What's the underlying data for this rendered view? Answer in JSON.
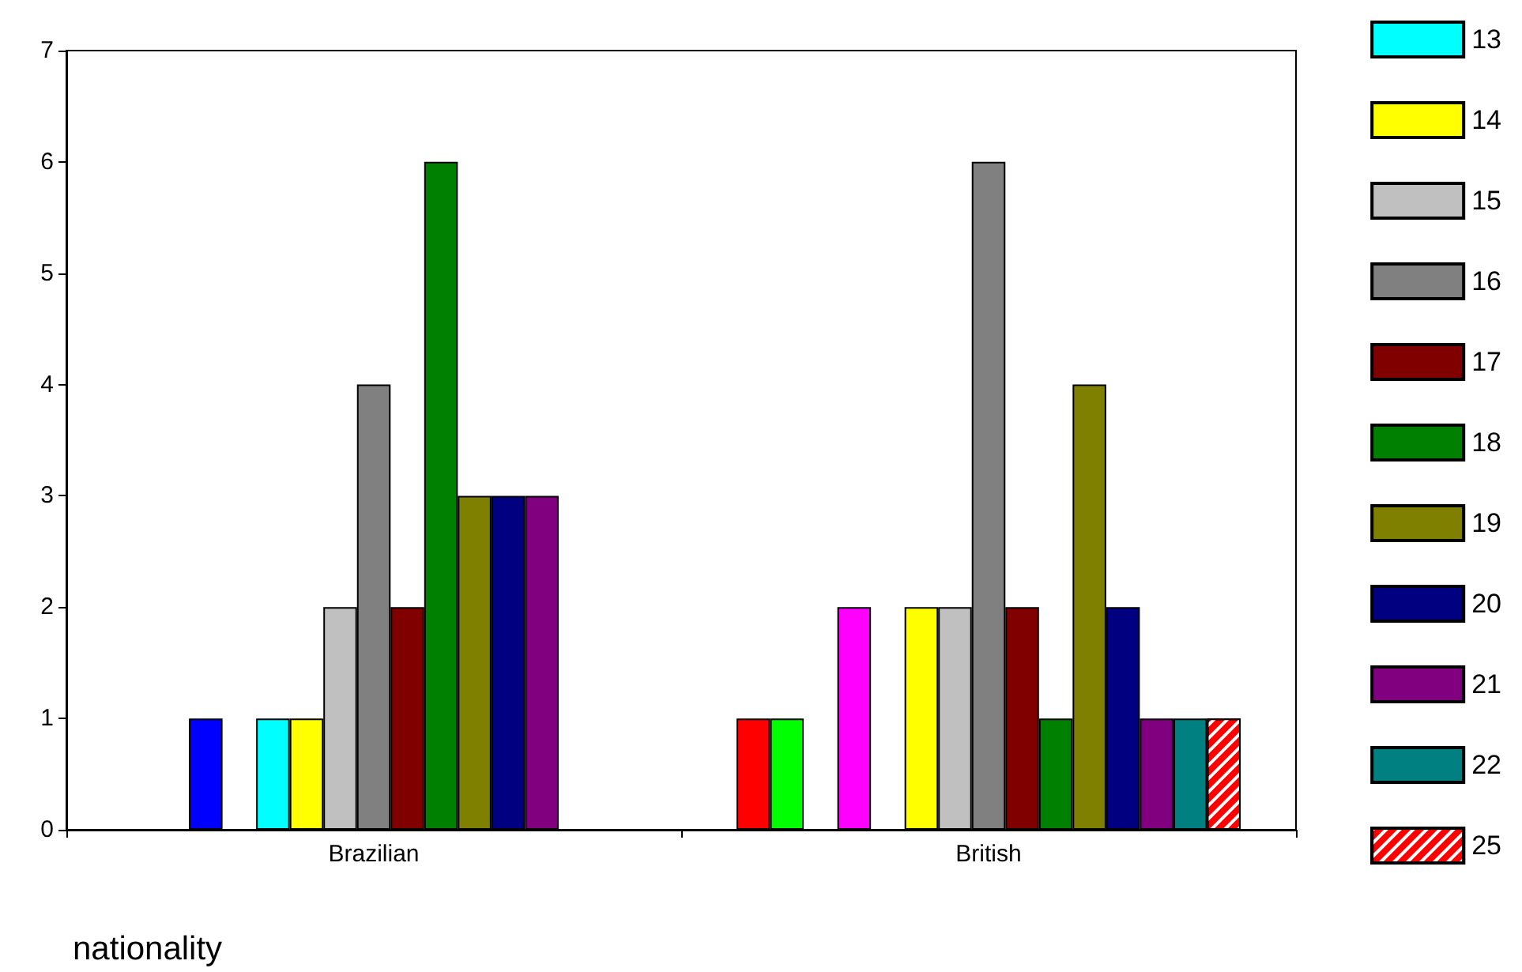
{
  "chart_data": {
    "type": "bar",
    "xlabel": "nationality",
    "categories": [
      "Brazilian",
      "British"
    ],
    "series": [
      {
        "color": "#ff0000",
        "values": [
          null,
          1
        ]
      },
      {
        "color": "#00ff00",
        "values": [
          null,
          1
        ]
      },
      {
        "color": "#0000ff",
        "values": [
          1,
          null
        ]
      },
      {
        "color": "#ff00ff",
        "values": [
          null,
          2
        ]
      },
      {
        "name": "13",
        "color": "#00ffff",
        "values": [
          1,
          null
        ]
      },
      {
        "name": "14",
        "color": "#ffff00",
        "values": [
          1,
          2
        ]
      },
      {
        "name": "15",
        "color": "#c0c0c0",
        "values": [
          2,
          2
        ]
      },
      {
        "name": "16",
        "color": "#808080",
        "values": [
          4,
          6
        ]
      },
      {
        "name": "17",
        "color": "#800000",
        "values": [
          2,
          2
        ]
      },
      {
        "name": "18",
        "color": "#008000",
        "values": [
          6,
          1
        ]
      },
      {
        "name": "19",
        "color": "#808000",
        "values": [
          3,
          4
        ]
      },
      {
        "name": "20",
        "color": "#000080",
        "values": [
          3,
          2
        ]
      },
      {
        "name": "21",
        "color": "#800080",
        "values": [
          3,
          1
        ]
      },
      {
        "name": "22",
        "color": "#008080",
        "values": [
          null,
          1
        ]
      },
      {
        "name": "25",
        "color": "#ff0000",
        "values": [
          null,
          1
        ]
      }
    ],
    "ylim": [
      0,
      7
    ],
    "yticks": [
      0,
      1,
      2,
      3,
      4,
      5,
      6,
      7
    ],
    "grid": false,
    "legend": "right"
  }
}
